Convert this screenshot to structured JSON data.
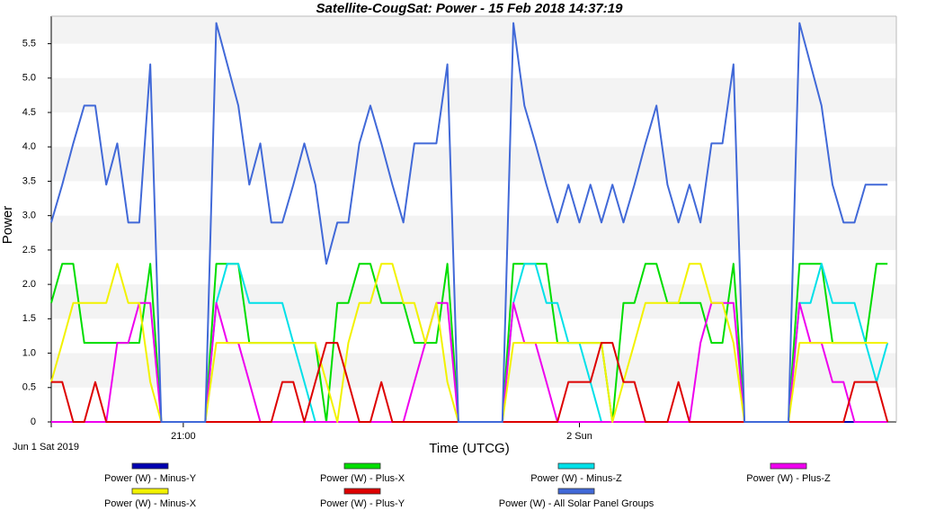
{
  "chart_data": {
    "type": "line",
    "title": "Satellite-CougSat:  Power - 15 Feb 2018 14:37:19",
    "y_label": "Power",
    "x_label": "Time (UTCG)",
    "x": [
      "2019-06-01T20:00",
      "2019-06-01T20:05",
      "2019-06-01T20:10",
      "2019-06-01T20:15",
      "2019-06-01T20:20",
      "2019-06-01T20:25",
      "2019-06-01T20:30",
      "2019-06-01T20:35",
      "2019-06-01T20:40",
      "2019-06-01T20:45",
      "2019-06-01T20:50",
      "2019-06-01T20:55",
      "2019-06-01T21:00",
      "2019-06-01T21:05",
      "2019-06-01T21:10",
      "2019-06-01T21:15",
      "2019-06-01T21:20",
      "2019-06-01T21:25",
      "2019-06-01T21:30",
      "2019-06-01T21:35",
      "2019-06-01T21:40",
      "2019-06-01T21:45",
      "2019-06-01T21:50",
      "2019-06-01T21:55",
      "2019-06-01T22:00",
      "2019-06-01T22:05",
      "2019-06-01T22:10",
      "2019-06-01T22:15",
      "2019-06-01T22:20",
      "2019-06-01T22:25",
      "2019-06-01T22:30",
      "2019-06-01T22:35",
      "2019-06-01T22:40",
      "2019-06-01T22:45",
      "2019-06-01T22:50",
      "2019-06-01T22:55",
      "2019-06-01T23:00",
      "2019-06-01T23:05",
      "2019-06-01T23:10",
      "2019-06-01T23:15",
      "2019-06-01T23:20",
      "2019-06-01T23:25",
      "2019-06-01T23:30",
      "2019-06-01T23:35",
      "2019-06-01T23:40",
      "2019-06-01T23:45",
      "2019-06-01T23:50",
      "2019-06-01T23:55",
      "2019-06-02T00:00",
      "2019-06-02T00:05",
      "2019-06-02T00:10",
      "2019-06-02T00:15",
      "2019-06-02T00:20",
      "2019-06-02T00:25",
      "2019-06-02T00:30",
      "2019-06-02T00:35",
      "2019-06-02T00:40",
      "2019-06-02T00:45",
      "2019-06-02T00:50",
      "2019-06-02T00:55",
      "2019-06-02T01:00",
      "2019-06-02T01:05",
      "2019-06-02T01:10",
      "2019-06-02T01:15",
      "2019-06-02T01:20",
      "2019-06-02T01:25",
      "2019-06-02T01:30",
      "2019-06-02T01:35",
      "2019-06-02T01:40",
      "2019-06-02T01:45",
      "2019-06-02T01:50",
      "2019-06-02T01:55",
      "2019-06-02T02:00",
      "2019-06-02T02:05",
      "2019-06-02T02:10",
      "2019-06-02T02:15",
      "2019-06-02T02:20"
    ],
    "xlim": [
      "2019-06-01T20:00",
      "2019-06-02T02:24"
    ],
    "xticks": [
      {
        "value": "2019-06-01T20:00",
        "label": "Jun 1 Sat 2019"
      },
      {
        "value": "2019-06-01T21:00",
        "label": "21:00"
      },
      {
        "value": "2019-06-02T00:00",
        "label": "2 Sun"
      }
    ],
    "ylim": [
      0,
      5.9
    ],
    "yticks": [
      0,
      0.5,
      {
        "value": 1,
        "label": "1.0"
      },
      1.5,
      {
        "value": 2,
        "label": "2.0"
      },
      2.5,
      {
        "value": 3,
        "label": "3.0"
      },
      3.5,
      {
        "value": 4,
        "label": "4.0"
      },
      4.5,
      {
        "value": 5,
        "label": "5.0"
      },
      5.5
    ],
    "grid": true,
    "series": [
      {
        "name": "Power (W) - Minus-Y",
        "color": "#0000b0",
        "values": [
          0,
          0,
          0,
          0,
          0,
          0,
          0,
          0,
          0,
          0,
          0,
          0,
          0,
          0,
          0,
          0,
          0,
          0,
          0,
          0,
          0,
          0,
          0,
          0,
          0,
          0,
          0,
          0,
          0,
          0,
          0,
          0,
          0,
          0,
          0,
          0,
          0,
          0,
          0,
          0,
          0,
          0,
          0,
          0,
          0,
          0,
          0,
          0,
          0,
          0,
          0,
          0,
          0,
          0,
          0,
          0,
          0,
          0,
          0,
          0,
          0,
          0,
          0,
          0,
          0,
          0,
          0,
          0,
          0,
          0,
          0,
          0,
          0,
          0,
          0,
          0,
          0
        ]
      },
      {
        "name": "Power (W) - Plus-X",
        "color": "#00dd00",
        "values": [
          1.73,
          2.3,
          2.3,
          1.15,
          1.15,
          1.15,
          1.15,
          1.15,
          1.15,
          2.3,
          0,
          0,
          0,
          0,
          0,
          2.3,
          2.3,
          2.3,
          1.15,
          1.15,
          1.15,
          1.15,
          1.15,
          1.15,
          1.15,
          0,
          1.73,
          1.73,
          2.3,
          2.3,
          1.73,
          1.73,
          1.73,
          1.15,
          1.15,
          1.15,
          2.3,
          0,
          0,
          0,
          0,
          0,
          2.3,
          2.3,
          2.3,
          2.3,
          1.15,
          1.15,
          1.15,
          1.15,
          1.15,
          0,
          1.73,
          1.73,
          2.3,
          2.3,
          1.73,
          1.73,
          1.73,
          1.73,
          1.15,
          1.15,
          2.3,
          0,
          0,
          0,
          0,
          0,
          2.3,
          2.3,
          2.3,
          1.15,
          1.15,
          1.15,
          1.15,
          2.3,
          2.3
        ]
      },
      {
        "name": "Power (W) - Minus-Z",
        "color": "#00e0e8",
        "values": [
          0,
          0,
          0,
          0,
          0,
          0,
          0,
          0,
          0,
          0,
          0,
          0,
          0,
          0,
          0,
          1.73,
          2.3,
          2.3,
          1.73,
          1.73,
          1.73,
          1.73,
          1.15,
          0.58,
          0,
          0,
          0,
          0,
          0,
          0,
          0,
          0,
          0,
          0,
          0,
          0,
          0,
          0,
          0,
          0,
          0,
          0,
          1.73,
          2.3,
          2.3,
          1.73,
          1.73,
          1.15,
          1.15,
          0.58,
          0,
          0,
          0,
          0,
          0,
          0,
          0,
          0,
          0,
          0,
          0,
          0,
          0,
          0,
          0,
          0,
          0,
          0,
          1.73,
          1.73,
          2.3,
          1.73,
          1.73,
          1.73,
          1.15,
          0.58,
          1.15
        ]
      },
      {
        "name": "Power (W) - Plus-Z",
        "color": "#ee00ee",
        "values": [
          0,
          0,
          0,
          0,
          0,
          0,
          1.15,
          1.15,
          1.73,
          1.73,
          0,
          0,
          0,
          0,
          0,
          1.73,
          1.15,
          1.15,
          0.58,
          0,
          0,
          0,
          0,
          0,
          0,
          0,
          0,
          0,
          0,
          0,
          0,
          0,
          0,
          0.58,
          1.15,
          1.73,
          1.73,
          0,
          0,
          0,
          0,
          0,
          1.73,
          1.15,
          1.15,
          0.58,
          0,
          0,
          0,
          0,
          0,
          0,
          0,
          0,
          0,
          0,
          0,
          0,
          0,
          1.15,
          1.73,
          1.73,
          1.73,
          0,
          0,
          0,
          0,
          0,
          1.73,
          1.15,
          1.15,
          0.58,
          0.58,
          0,
          0,
          0,
          0
        ]
      },
      {
        "name": "Power (W) - Minus-X",
        "color": "#f2f200",
        "values": [
          0.58,
          1.15,
          1.73,
          1.73,
          1.73,
          1.73,
          2.3,
          1.73,
          1.73,
          0.58,
          0,
          0,
          0,
          0,
          0,
          1.15,
          1.15,
          1.15,
          1.15,
          1.15,
          1.15,
          1.15,
          1.15,
          1.15,
          1.15,
          0.58,
          0,
          1.15,
          1.73,
          1.73,
          2.3,
          2.3,
          1.73,
          1.73,
          1.15,
          1.73,
          0.58,
          0,
          0,
          0,
          0,
          0,
          1.15,
          1.15,
          1.15,
          1.15,
          1.15,
          1.15,
          1.15,
          1.15,
          1.15,
          0,
          0.58,
          1.15,
          1.73,
          1.73,
          1.73,
          1.73,
          2.3,
          2.3,
          1.73,
          1.73,
          1.15,
          0,
          0,
          0,
          0,
          0,
          1.15,
          1.15,
          1.15,
          1.15,
          1.15,
          1.15,
          1.15,
          1.15,
          1.15
        ]
      },
      {
        "name": "Power (W) - Plus-Y",
        "color": "#dd0000",
        "values": [
          0.58,
          0.58,
          0,
          0,
          0.58,
          0,
          0,
          0,
          0,
          0,
          0,
          0,
          0,
          0,
          0,
          0,
          0,
          0,
          0,
          0,
          0,
          0.58,
          0.58,
          0,
          0.58,
          1.15,
          1.15,
          0.58,
          0,
          0,
          0.58,
          0,
          0,
          0,
          0,
          0,
          0,
          0,
          0,
          0,
          0,
          0,
          0,
          0,
          0,
          0,
          0,
          0.58,
          0.58,
          0.58,
          1.15,
          1.15,
          0.58,
          0.58,
          0,
          0,
          0,
          0.58,
          0,
          0,
          0,
          0,
          0,
          0,
          0,
          0,
          0,
          0,
          0,
          0,
          0,
          0,
          0,
          0.58,
          0.58,
          0.58,
          0
        ]
      },
      {
        "name": "Power (W) - All Solar Panel Groups",
        "color": "#4169d8",
        "values": [
          2.9,
          3.45,
          4.05,
          4.6,
          4.6,
          3.45,
          4.05,
          2.9,
          2.9,
          5.2,
          0,
          0,
          0,
          0,
          0,
          5.8,
          5.2,
          4.6,
          3.45,
          4.05,
          2.9,
          2.9,
          3.45,
          4.05,
          3.45,
          2.3,
          2.9,
          2.9,
          4.05,
          4.6,
          4.05,
          3.45,
          2.9,
          4.05,
          4.05,
          4.05,
          5.2,
          0,
          0,
          0,
          0,
          0,
          5.8,
          4.6,
          4.05,
          3.45,
          2.9,
          3.45,
          2.9,
          3.45,
          2.9,
          3.45,
          2.9,
          3.45,
          4.05,
          4.6,
          3.45,
          2.9,
          3.45,
          2.9,
          4.05,
          4.05,
          5.2,
          0,
          0,
          0,
          0,
          0,
          5.8,
          5.2,
          4.6,
          3.45,
          2.9,
          2.9,
          3.45,
          3.45,
          3.45
        ]
      }
    ]
  }
}
